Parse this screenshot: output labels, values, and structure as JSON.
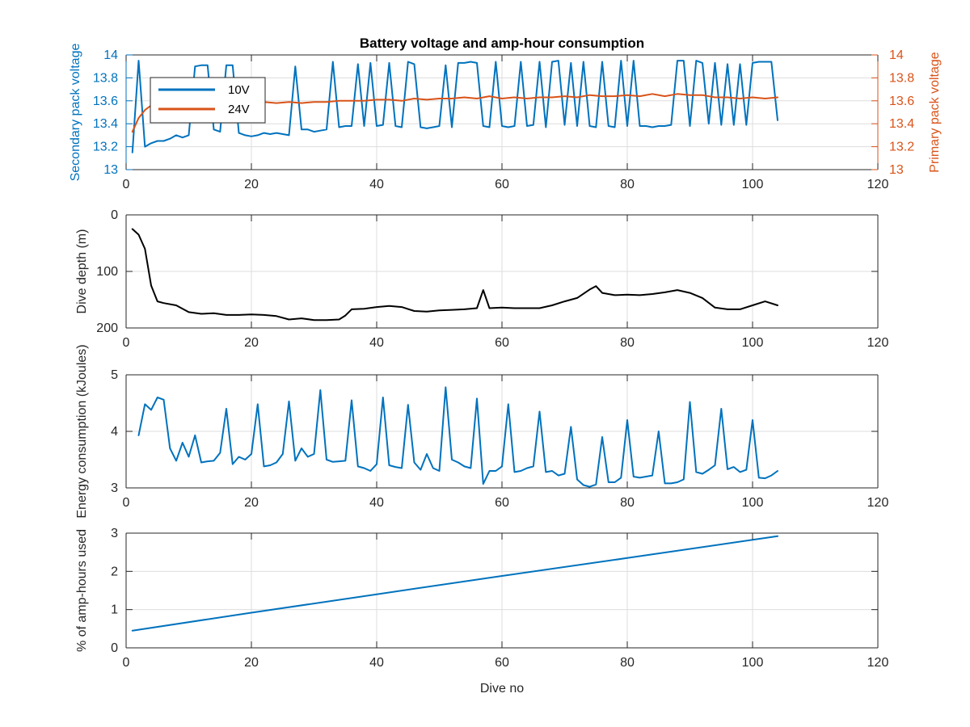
{
  "figure": {
    "title": "Battery voltage and amp-hour consumption",
    "shared_xlabel": "Dive no"
  },
  "colors": {
    "blue": "#0072BD",
    "orange": "#D95319",
    "black": "#000000",
    "axis": "#262626",
    "grid": "#DDDDDD"
  },
  "chart_data": [
    {
      "type": "line",
      "id": "voltage",
      "title": "Battery voltage and amp-hour consumption",
      "xlabel": "",
      "ylabel": "Secondary pack voltage",
      "ylabel_right": "Primary pack voltage",
      "xlim": [
        0,
        120
      ],
      "ylim": [
        13,
        14
      ],
      "ylim_right": [
        13,
        14
      ],
      "xticks": [
        0,
        20,
        40,
        60,
        80,
        100,
        120
      ],
      "yticks": [
        13,
        13.2,
        13.4,
        13.6,
        13.8,
        14
      ],
      "yticks_right": [
        13,
        13.2,
        13.4,
        13.6,
        13.8,
        14
      ],
      "grid": true,
      "legend": {
        "position": "top-left",
        "entries": [
          "10V",
          "24V"
        ]
      },
      "series": [
        {
          "name": "10V",
          "axis": "left",
          "color": "#0072BD",
          "x": [
            1,
            2,
            3,
            4,
            5,
            6,
            7,
            8,
            9,
            10,
            11,
            12,
            13,
            14,
            15,
            16,
            17,
            18,
            19,
            20,
            21,
            22,
            23,
            24,
            25,
            26,
            27,
            28,
            29,
            30,
            31,
            32,
            33,
            34,
            35,
            36,
            37,
            38,
            39,
            40,
            41,
            42,
            43,
            44,
            45,
            46,
            47,
            48,
            49,
            50,
            51,
            52,
            53,
            54,
            55,
            56,
            57,
            58,
            59,
            60,
            61,
            62,
            63,
            64,
            65,
            66,
            67,
            68,
            69,
            70,
            71,
            72,
            73,
            74,
            75,
            76,
            77,
            78,
            79,
            80,
            81,
            82,
            83,
            84,
            85,
            86,
            87,
            88,
            89,
            90,
            91,
            92,
            93,
            94,
            95,
            96,
            97,
            98,
            99,
            100,
            101,
            102,
            103,
            104
          ],
          "y": [
            13.15,
            13.95,
            13.2,
            13.23,
            13.25,
            13.25,
            13.27,
            13.3,
            13.28,
            13.3,
            13.9,
            13.91,
            13.91,
            13.35,
            13.33,
            13.91,
            13.91,
            13.32,
            13.3,
            13.29,
            13.3,
            13.32,
            13.31,
            13.32,
            13.31,
            13.3,
            13.9,
            13.35,
            13.35,
            13.33,
            13.34,
            13.35,
            13.94,
            13.37,
            13.38,
            13.38,
            13.92,
            13.38,
            13.93,
            13.38,
            13.39,
            13.93,
            13.38,
            13.37,
            13.94,
            13.92,
            13.37,
            13.36,
            13.37,
            13.38,
            13.91,
            13.37,
            13.93,
            13.93,
            13.94,
            13.93,
            13.38,
            13.37,
            13.94,
            13.38,
            13.37,
            13.38,
            13.94,
            13.38,
            13.39,
            13.94,
            13.37,
            13.94,
            13.95,
            13.39,
            13.93,
            13.38,
            13.94,
            13.38,
            13.37,
            13.94,
            13.38,
            13.37,
            13.95,
            13.38,
            13.95,
            13.38,
            13.38,
            13.37,
            13.38,
            13.38,
            13.39,
            13.95,
            13.95,
            13.38,
            13.95,
            13.93,
            13.4,
            13.93,
            13.39,
            13.92,
            13.39,
            13.92,
            13.39,
            13.93,
            13.94,
            13.94,
            13.94,
            13.43
          ]
        },
        {
          "name": "24V",
          "axis": "right",
          "color": "#D95319",
          "x": [
            1,
            2,
            3,
            4,
            5,
            6,
            7,
            8,
            9,
            10,
            12,
            14,
            16,
            18,
            20,
            22,
            24,
            26,
            28,
            30,
            32,
            34,
            36,
            38,
            40,
            42,
            44,
            46,
            48,
            50,
            52,
            54,
            56,
            58,
            60,
            62,
            64,
            66,
            68,
            70,
            72,
            74,
            76,
            78,
            80,
            82,
            84,
            86,
            88,
            90,
            92,
            94,
            96,
            98,
            100,
            102,
            104
          ],
          "y": [
            13.33,
            13.45,
            13.52,
            13.56,
            13.57,
            13.58,
            13.58,
            13.58,
            13.59,
            13.58,
            13.59,
            13.58,
            13.59,
            13.58,
            13.59,
            13.59,
            13.58,
            13.59,
            13.58,
            13.59,
            13.59,
            13.6,
            13.6,
            13.6,
            13.61,
            13.61,
            13.6,
            13.62,
            13.61,
            13.62,
            13.62,
            13.63,
            13.62,
            13.64,
            13.62,
            13.63,
            13.62,
            13.63,
            13.63,
            13.64,
            13.63,
            13.65,
            13.64,
            13.64,
            13.65,
            13.64,
            13.66,
            13.64,
            13.66,
            13.65,
            13.65,
            13.63,
            13.63,
            13.62,
            13.63,
            13.62,
            13.63
          ]
        }
      ]
    },
    {
      "type": "line",
      "id": "depth",
      "xlabel": "",
      "ylabel": "Dive depth (m)",
      "xlim": [
        0,
        120
      ],
      "ylim": [
        0,
        200
      ],
      "y_reversed": true,
      "xticks": [
        0,
        20,
        40,
        60,
        80,
        100,
        120
      ],
      "yticks": [
        0,
        100,
        200
      ],
      "grid": true,
      "series": [
        {
          "color": "#000000",
          "x": [
            1,
            2,
            3,
            4,
            5,
            6,
            8,
            10,
            12,
            14,
            16,
            18,
            20,
            22,
            24,
            26,
            28,
            30,
            32,
            34,
            35,
            36,
            38,
            40,
            42,
            44,
            46,
            48,
            50,
            52,
            54,
            56,
            57,
            58,
            60,
            62,
            64,
            66,
            68,
            70,
            72,
            74,
            75,
            76,
            78,
            80,
            82,
            84,
            86,
            88,
            90,
            92,
            94,
            96,
            98,
            100,
            102,
            104
          ],
          "y": [
            25,
            35,
            60,
            125,
            153,
            156,
            160,
            172,
            175,
            174,
            177,
            177,
            176,
            177,
            179,
            185,
            183,
            186,
            186,
            185,
            178,
            167,
            166,
            163,
            161,
            163,
            170,
            171,
            169,
            168,
            167,
            165,
            133,
            165,
            164,
            165,
            165,
            165,
            160,
            153,
            147,
            132,
            126,
            138,
            142,
            141,
            142,
            140,
            137,
            133,
            138,
            147,
            164,
            167,
            167,
            160,
            153,
            160
          ]
        }
      ]
    },
    {
      "type": "line",
      "id": "energy",
      "xlabel": "",
      "ylabel": "Energy consumption (kJoules)",
      "xlim": [
        0,
        120
      ],
      "ylim": [
        3,
        5
      ],
      "xticks": [
        0,
        20,
        40,
        60,
        80,
        100,
        120
      ],
      "yticks": [
        3,
        4,
        5
      ],
      "grid": true,
      "series": [
        {
          "color": "#0072BD",
          "x": [
            2,
            3,
            4,
            5,
            6,
            7,
            8,
            9,
            10,
            11,
            12,
            13,
            14,
            15,
            16,
            17,
            18,
            19,
            20,
            21,
            22,
            23,
            24,
            25,
            26,
            27,
            28,
            29,
            30,
            31,
            32,
            33,
            34,
            35,
            36,
            37,
            38,
            39,
            40,
            41,
            42,
            43,
            44,
            45,
            46,
            47,
            48,
            49,
            50,
            51,
            52,
            53,
            54,
            55,
            56,
            57,
            58,
            59,
            60,
            61,
            62,
            63,
            64,
            65,
            66,
            67,
            68,
            69,
            70,
            71,
            72,
            73,
            74,
            75,
            76,
            77,
            78,
            79,
            80,
            81,
            82,
            83,
            84,
            85,
            86,
            87,
            88,
            89,
            90,
            91,
            92,
            93,
            94,
            95,
            96,
            97,
            98,
            99,
            100,
            101,
            102,
            103,
            104
          ],
          "y": [
            3.93,
            4.48,
            4.38,
            4.6,
            4.56,
            3.7,
            3.48,
            3.8,
            3.55,
            3.93,
            3.45,
            3.47,
            3.48,
            3.62,
            4.4,
            3.42,
            3.55,
            3.5,
            3.6,
            4.48,
            3.38,
            3.4,
            3.45,
            3.6,
            4.53,
            3.48,
            3.7,
            3.55,
            3.6,
            4.73,
            3.5,
            3.46,
            3.47,
            3.48,
            4.55,
            3.38,
            3.35,
            3.3,
            3.42,
            4.6,
            3.4,
            3.37,
            3.35,
            4.47,
            3.45,
            3.32,
            3.6,
            3.35,
            3.3,
            4.78,
            3.5,
            3.45,
            3.38,
            3.35,
            4.58,
            3.07,
            3.3,
            3.3,
            3.38,
            4.48,
            3.28,
            3.3,
            3.35,
            3.38,
            4.35,
            3.28,
            3.3,
            3.22,
            3.25,
            4.08,
            3.15,
            3.05,
            3.02,
            3.06,
            3.9,
            3.1,
            3.1,
            3.18,
            4.2,
            3.2,
            3.18,
            3.2,
            3.22,
            4.0,
            3.08,
            3.08,
            3.1,
            3.15,
            4.52,
            3.28,
            3.25,
            3.32,
            3.4,
            4.4,
            3.33,
            3.37,
            3.28,
            3.32,
            4.2,
            3.18,
            3.17,
            3.22,
            3.3
          ]
        }
      ]
    },
    {
      "type": "line",
      "id": "amphours",
      "xlabel": "Dive no",
      "ylabel": "% of amp-hours used",
      "xlim": [
        0,
        120
      ],
      "ylim": [
        0,
        3
      ],
      "xticks": [
        0,
        20,
        40,
        60,
        80,
        100,
        120
      ],
      "yticks": [
        0,
        1,
        2,
        3
      ],
      "grid": true,
      "series": [
        {
          "color": "#0072BD",
          "x": [
            1,
            20,
            40,
            60,
            80,
            104
          ],
          "y": [
            0.45,
            0.92,
            1.4,
            1.88,
            2.35,
            2.92
          ]
        }
      ]
    }
  ]
}
